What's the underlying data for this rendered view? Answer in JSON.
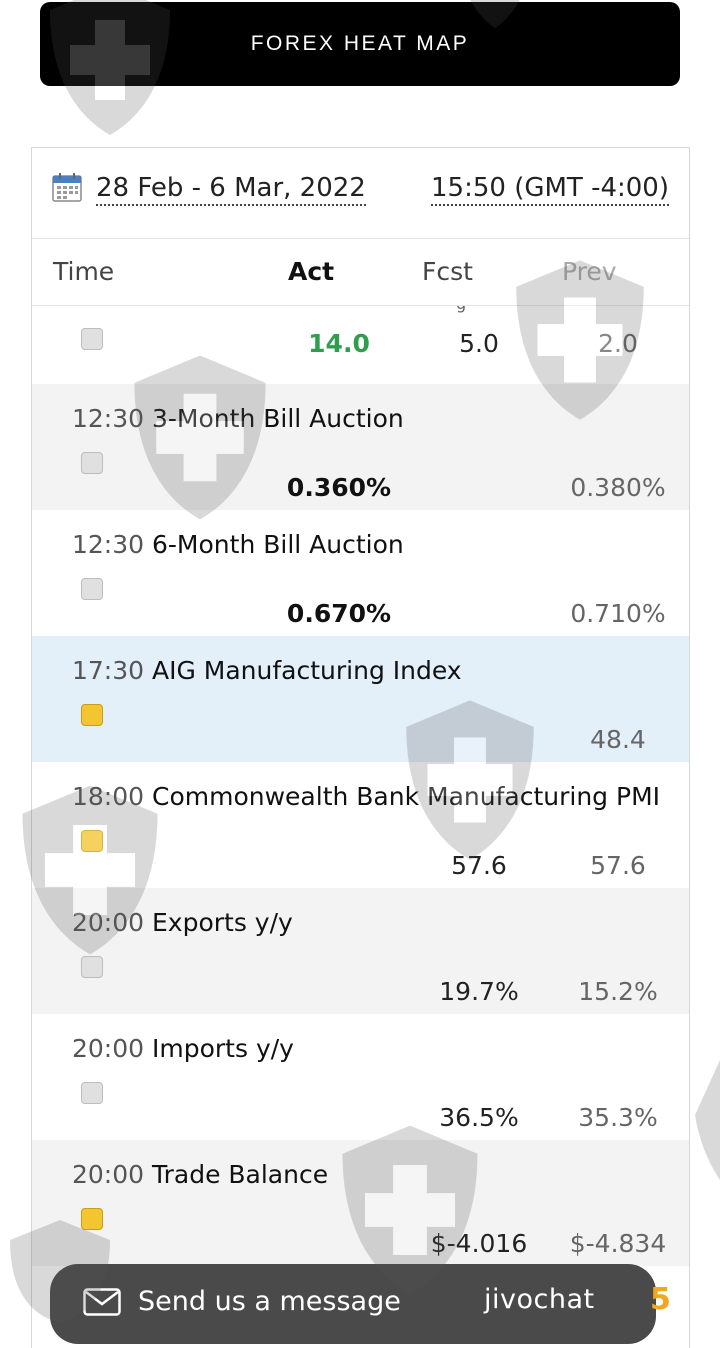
{
  "header": {
    "title": "FOREX HEAT MAP"
  },
  "datebar": {
    "date_range": "28 Feb - 6 Mar, 2022",
    "time": "15:50 (GMT -4:00)"
  },
  "columns": {
    "time": "Time",
    "act": "Act",
    "fcst": "Fcst",
    "prev": "Prev"
  },
  "events": [
    {
      "time": "",
      "name": "",
      "impact": "gray",
      "act": "14.0",
      "act_color": "#2e9e4d",
      "fcst": "5.0",
      "prev": "2.0"
    },
    {
      "time": "12:30",
      "name": "3-Month Bill Auction",
      "impact": "gray",
      "act": "0.360%",
      "fcst": "",
      "prev": "0.380%"
    },
    {
      "time": "12:30",
      "name": "6-Month Bill Auction",
      "impact": "gray",
      "act": "0.670%",
      "fcst": "",
      "prev": "0.710%"
    },
    {
      "time": "17:30",
      "name": "AIG Manufacturing Index",
      "impact": "yellow",
      "act": "",
      "fcst": "",
      "prev": "48.4"
    },
    {
      "time": "18:00",
      "name": "Commonwealth Bank Manufacturing PMI",
      "impact": "yellow",
      "act": "",
      "fcst": "57.6",
      "prev": "57.6"
    },
    {
      "time": "20:00",
      "name": "Exports y/y",
      "impact": "gray",
      "act": "",
      "fcst": "19.7%",
      "prev": "15.2%"
    },
    {
      "time": "20:00",
      "name": "Imports y/y",
      "impact": "gray",
      "act": "",
      "fcst": "36.5%",
      "prev": "35.3%"
    },
    {
      "time": "20:00",
      "name": "Trade Balance",
      "impact": "yellow",
      "act": "",
      "fcst": "$-4.016 B",
      "prev": "$-4.834 B"
    }
  ],
  "chat": {
    "label": "Send us a message",
    "brand": "jivochat",
    "badge": "5"
  },
  "colors": {
    "impact_yellow": "#f3c531",
    "highlight_row": "#e3eff9",
    "alt_row": "#f3f3f3",
    "chat_bg": "#4a4a4a"
  },
  "icons": {
    "calendar": "calendar-icon",
    "mail": "mail-icon",
    "watermark": "shield-cross-icon"
  }
}
